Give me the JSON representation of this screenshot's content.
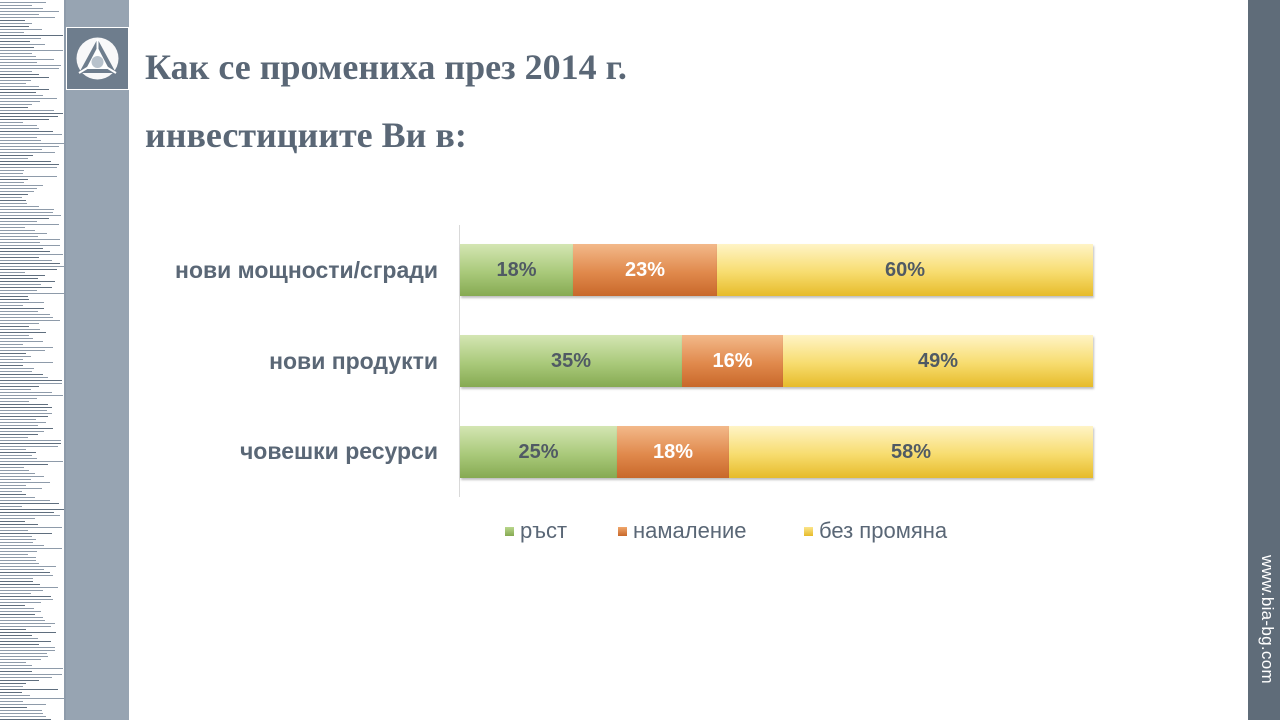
{
  "slide": {
    "title_line1": "Как се промениха през 2014 г.",
    "title_line2": "инвестициите Ви в:",
    "url": "www.bia-bg.com"
  },
  "colors": {
    "growth": "#9cbf68",
    "decrease": "#d97b3c",
    "no_change": "#f0cf4a",
    "sidebar": "#97a4b2",
    "right_bar": "#5f6c79",
    "title_text": "#5a6776"
  },
  "icons": {
    "logo": "bia-logo-icon"
  },
  "chart_data": {
    "type": "bar",
    "orientation": "horizontal",
    "stacked": true,
    "percent_stacked": true,
    "categories": [
      "нови мощности/сгради",
      "нови продукти",
      "човешки ресурси"
    ],
    "series": [
      {
        "name": "ръст",
        "values": [
          18,
          35,
          25
        ],
        "labels": [
          "18%",
          "35%",
          "25%"
        ]
      },
      {
        "name": "намаление",
        "values": [
          23,
          16,
          18
        ],
        "labels": [
          "23%",
          "16%",
          "18%"
        ]
      },
      {
        "name": "без промяна",
        "values": [
          60,
          49,
          58
        ],
        "labels": [
          "60%",
          "49%",
          "58%"
        ]
      }
    ],
    "xlim": [
      0,
      100
    ],
    "grid": false,
    "legend_position": "bottom"
  }
}
